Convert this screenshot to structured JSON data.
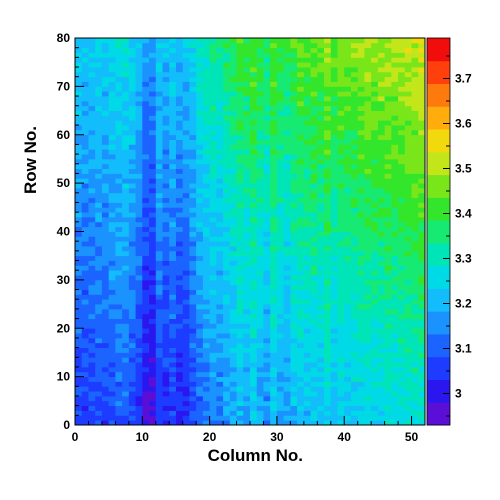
{
  "chart_data": {
    "type": "heatmap",
    "title": "",
    "xlabel": "Column No.",
    "ylabel": "Row No.",
    "xlim": [
      0,
      52
    ],
    "ylim": [
      0,
      80
    ],
    "x_bins": 52,
    "y_bins": 80,
    "x_ticks": [
      0,
      10,
      20,
      30,
      40,
      50
    ],
    "x_tick_labels": [
      "0",
      "10",
      "20",
      "30",
      "40",
      "50"
    ],
    "y_ticks": [
      0,
      10,
      20,
      30,
      40,
      50,
      60,
      70,
      80
    ],
    "y_tick_labels": [
      "0",
      "10",
      "20",
      "30",
      "40",
      "50",
      "60",
      "70",
      "80"
    ],
    "z_range": [
      2.93,
      3.79
    ],
    "colorbar_ticks": [
      3.0,
      3.1,
      3.2,
      3.3,
      3.4,
      3.5,
      3.6,
      3.7
    ],
    "colorbar_tick_labels": [
      "3",
      "3.1",
      "3.2",
      "3.3",
      "3.4",
      "3.5",
      "3.6",
      "3.7"
    ],
    "palette": [
      "#5b0fd6",
      "#2a17f0",
      "#1d3cff",
      "#1c64ff",
      "#1a93ff",
      "#13bdfb",
      "#00d9e6",
      "#00e5b8",
      "#16ea72",
      "#33e62b",
      "#79e61a",
      "#c2e61a",
      "#f2d90d",
      "#ffad0d",
      "#ff7a0d",
      "#ff400d",
      "#f20d0d"
    ],
    "description_of_values": {
      "column_profile": [
        3.06,
        3.05,
        3.06,
        3.07,
        3.06,
        3.08,
        3.09,
        3.09,
        3.07,
        3.04,
        2.98,
        2.97,
        3.05,
        3.02,
        3.05,
        3.01,
        3.02,
        3.06,
        3.1,
        3.12,
        3.14,
        3.13,
        3.16,
        3.17,
        3.2,
        3.18,
        3.22,
        3.18,
        3.15,
        3.22,
        3.18,
        3.16,
        3.2,
        3.22,
        3.2,
        3.22,
        3.21,
        3.24,
        3.2,
        3.23,
        3.22,
        3.23,
        3.24,
        3.25,
        3.24,
        3.25,
        3.26,
        3.25,
        3.26,
        3.27,
        3.27,
        3.28
      ],
      "row_gradient": 0.0022,
      "top_right_boost": 0.08,
      "noise_amplitude": 0.035,
      "seed": 7
    }
  }
}
